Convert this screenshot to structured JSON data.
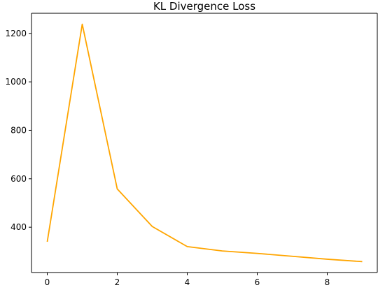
{
  "chart_data": {
    "type": "line",
    "title": "KL Divergence Loss",
    "xlabel": "",
    "ylabel": "",
    "x": [
      0,
      1,
      2,
      3,
      4,
      5,
      6,
      7,
      8,
      9
    ],
    "series": [
      {
        "values": [
          340,
          1238,
          558,
          403,
          320,
          302,
          292,
          280,
          268,
          258
        ],
        "color": "#ffa500"
      }
    ],
    "xlim": [
      -0.45,
      9.45
    ],
    "ylim": [
      213,
      1283
    ],
    "x_ticks": [
      0,
      2,
      4,
      6,
      8
    ],
    "y_ticks": [
      400,
      600,
      800,
      1000,
      1200
    ],
    "grid": false,
    "legend": "none"
  }
}
